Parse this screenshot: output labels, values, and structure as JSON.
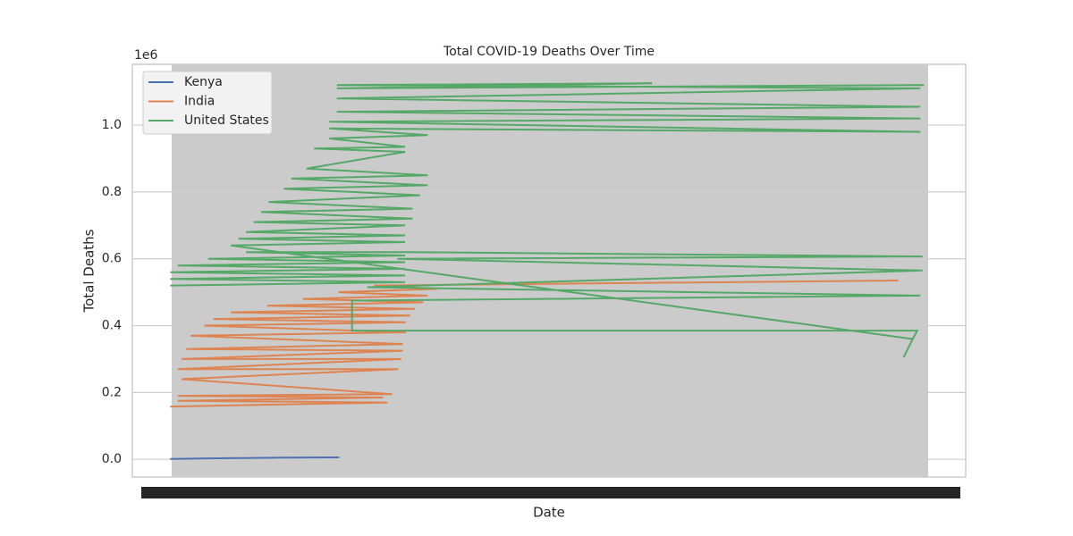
{
  "chart_data": {
    "type": "line",
    "title": "Total COVID-19 Deaths Over Time",
    "x_label": "Date",
    "y_label": "Total Deaths",
    "y_offset_label": "1e6",
    "xlim": [
      -5,
      105
    ],
    "ylim": [
      -0.053,
      1.182
    ],
    "yticks": [
      {
        "value": 0,
        "label": "0.0"
      },
      {
        "value": 0.2,
        "label": "0.2"
      },
      {
        "value": 0.4,
        "label": "0.4"
      },
      {
        "value": 0.6,
        "label": "0.6"
      },
      {
        "value": 0.8,
        "label": "0.8"
      },
      {
        "value": 1,
        "label": "1.0"
      }
    ],
    "grid": true,
    "legend": "upper left",
    "series": [
      {
        "name": "Kenya",
        "color": "#4c72b0",
        "x": [
          0,
          5,
          10,
          15,
          22.3
        ],
        "values": [
          0.001,
          0.003,
          0.004,
          0.005,
          0.0057
        ]
      },
      {
        "name": "India",
        "color": "#dd8452",
        "x": [
          0,
          28.7,
          1,
          28.1,
          1,
          29.3,
          1.5,
          30.1,
          1,
          30.5,
          1.5,
          30.7,
          2.1,
          30.7,
          2.7,
          31.1,
          4.5,
          31.1,
          5.7,
          31.7,
          8,
          32.3,
          12.8,
          33.4,
          17.5,
          34,
          22.2,
          35.2,
          26.9,
          96.1
        ],
        "values": [
          0.158,
          0.17,
          0.175,
          0.185,
          0.19,
          0.195,
          0.24,
          0.27,
          0.27,
          0.3,
          0.3,
          0.325,
          0.33,
          0.345,
          0.37,
          0.38,
          0.4,
          0.41,
          0.42,
          0.43,
          0.44,
          0.45,
          0.46,
          0.47,
          0.48,
          0.49,
          0.5,
          0.51,
          0.52,
          0.535
        ]
      },
      {
        "name": "United States",
        "color": "#55a868",
        "x": [
          0,
          31,
          0,
          31,
          0,
          31,
          1,
          31,
          5,
          31,
          10,
          31,
          99.3,
          30,
          99.3,
          26,
          99,
          24,
          24,
          98.6,
          98,
          96.8,
          98,
          8,
          31,
          9,
          31,
          10,
          31,
          11,
          32,
          12,
          32,
          13,
          33,
          15,
          34,
          16,
          34,
          18,
          31,
          19,
          31,
          21,
          34,
          21,
          99,
          21,
          99,
          22,
          99,
          22,
          99,
          22,
          63.6,
          22,
          99.5
        ],
        "values": [
          0.52,
          0.53,
          0.54,
          0.55,
          0.56,
          0.57,
          0.58,
          0.59,
          0.6,
          0.61,
          0.62,
          0.62,
          0.607,
          0.6,
          0.565,
          0.515,
          0.49,
          0.475,
          0.385,
          0.385,
          0.36,
          0.305,
          0.36,
          0.64,
          0.65,
          0.66,
          0.67,
          0.68,
          0.7,
          0.71,
          0.72,
          0.74,
          0.75,
          0.77,
          0.79,
          0.81,
          0.82,
          0.84,
          0.85,
          0.87,
          0.92,
          0.93,
          0.935,
          0.96,
          0.97,
          0.99,
          0.98,
          1.01,
          1.02,
          1.04,
          1.055,
          1.08,
          1.11,
          1.12,
          1.125,
          1.11,
          1.12
        ]
      }
    ]
  }
}
